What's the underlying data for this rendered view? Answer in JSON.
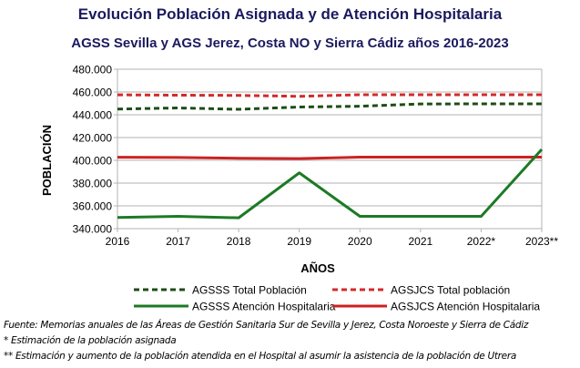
{
  "chart_data": {
    "type": "line",
    "title": "Evolución Población Asignada y de Atención Hospitalaria",
    "subtitle": "AGSS Sevilla y AGS Jerez, Costa NO y Sierra Cádiz años 2016-2023",
    "xlabel": "AÑOS",
    "ylabel": "POBLACIÓN",
    "categories": [
      "2016",
      "2017",
      "2018",
      "2019",
      "2020",
      "2021",
      "2022*",
      "2023**"
    ],
    "ylim": [
      340000,
      480000
    ],
    "yticks": [
      340000,
      360000,
      380000,
      400000,
      420000,
      440000,
      460000,
      480000
    ],
    "ytick_labels": [
      "340.000",
      "360.000",
      "380.000",
      "400.000",
      "420.000",
      "440.000",
      "460.000",
      "480.000"
    ],
    "grid": true,
    "legend_position": "bottom",
    "series": [
      {
        "name": "AGSSS Total Población",
        "style": "dashed",
        "color": "#1e4d16",
        "values": [
          445000,
          446000,
          444800,
          446800,
          447500,
          449500,
          449600,
          449600
        ]
      },
      {
        "name": "AGSSS Atención Hospitalaria",
        "style": "solid",
        "color": "#1d7a25",
        "values": [
          349800,
          350800,
          349500,
          389000,
          350800,
          350800,
          350800,
          409600
        ]
      },
      {
        "name": "AGSJCS Total población",
        "style": "dashed",
        "color": "#d42a2a",
        "values": [
          457500,
          457200,
          457000,
          456200,
          457600,
          457600,
          457600,
          457600
        ]
      },
      {
        "name": "AGSJCS Atención Hospitalaria",
        "style": "solid",
        "color": "#cc2222",
        "values": [
          402700,
          402500,
          401800,
          401500,
          402800,
          402800,
          402800,
          402800
        ]
      }
    ]
  },
  "footnotes": {
    "source": "Fuente:  Memorias anuales de las Áreas de Gestión Sanitaria Sur de Sevilla  y Jerez, Costa Noroeste y Sierra de Cádiz",
    "note1": "* Estimación de la población asignada",
    "note2": "** Estimación y aumento de la población atendida en el Hospital al asumir la asistencia de la población de Utrera"
  }
}
